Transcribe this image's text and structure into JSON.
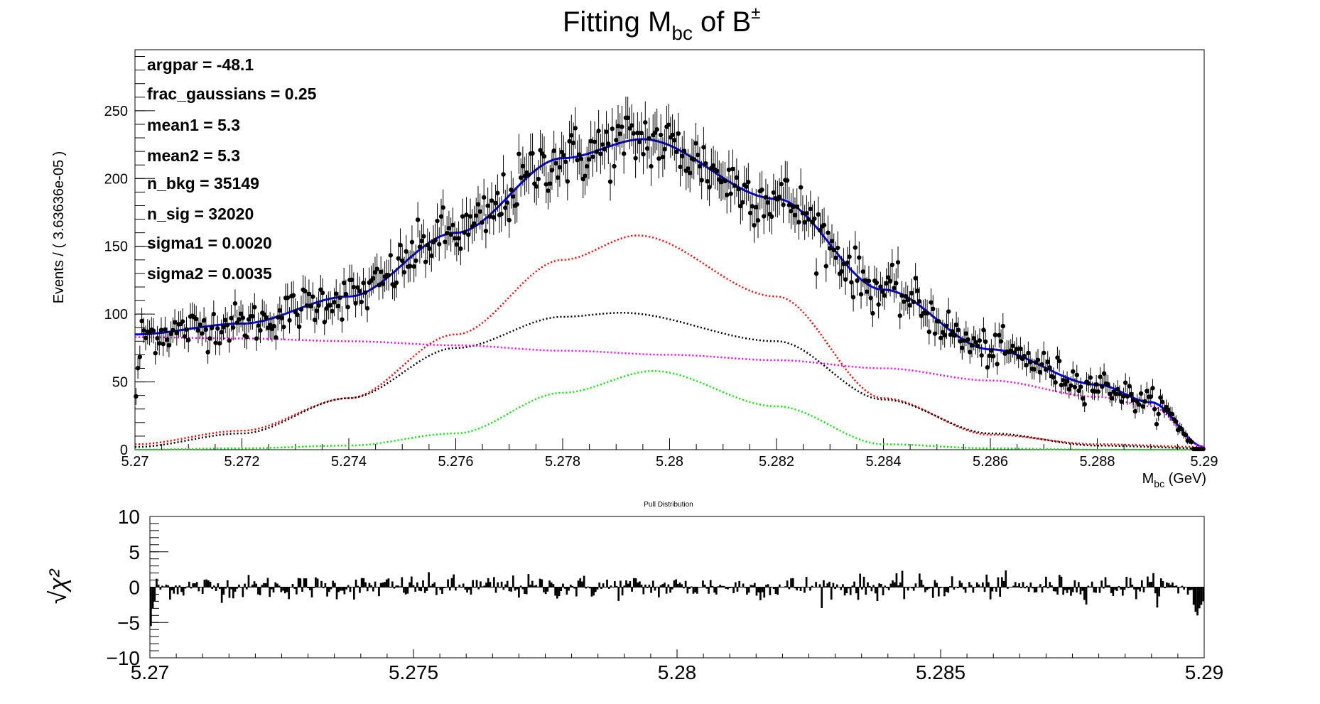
{
  "chart_data": [
    {
      "type": "scatter",
      "title": "Fitting M",
      "title_sub": "bc",
      "title_rest": " of B",
      "title_sup": "±",
      "xlabel": "M",
      "xlabel_sub": "bc",
      "xlabel_rest": " (GeV)",
      "ylabel": "Events / ( 3.63636e-05 )",
      "xlim": [
        5.27,
        5.29
      ],
      "ylim": [
        0,
        295
      ],
      "x_ticks": [
        "5.27",
        "5.272",
        "5.274",
        "5.276",
        "5.278",
        "5.28",
        "5.282",
        "5.284",
        "5.286",
        "5.288",
        "5.29"
      ],
      "y_ticks": [
        "0",
        "50",
        "100",
        "150",
        "200",
        "250"
      ],
      "x_tick_values": [
        5.27,
        5.272,
        5.274,
        5.276,
        5.278,
        5.28,
        5.282,
        5.284,
        5.286,
        5.288,
        5.29
      ],
      "y_tick_values": [
        0,
        50,
        100,
        150,
        200,
        250
      ],
      "params": [
        "argpar = -48.1",
        "frac_gaussians =  0.25",
        "mean1 =  5.3",
        "mean2 =  5.3",
        "n_bkg =  35149",
        "n_sig =  32020",
        "sigma1 =  0.0020",
        "sigma2 =  0.0035"
      ],
      "data_points": {
        "n_bins": 550,
        "x_start": 5.27,
        "x_end": 5.29,
        "peak_value": 228,
        "peak_x": 5.2795,
        "comment_on_shape": "points follow the total fit curve"
      },
      "curves": [
        {
          "color": "#0000ff",
          "style": "solid",
          "x": [
            5.27,
            5.272,
            5.274,
            5.276,
            5.278,
            5.2795,
            5.282,
            5.284,
            5.286,
            5.288,
            5.289,
            5.29
          ],
          "y": [
            85,
            93,
            113,
            160,
            215,
            229,
            185,
            118,
            74,
            48,
            35,
            2
          ]
        },
        {
          "color": "#ff0000",
          "style": "dotted",
          "x": [
            5.27,
            5.272,
            5.274,
            5.276,
            5.278,
            5.2794,
            5.282,
            5.284,
            5.286,
            5.288,
            5.29
          ],
          "y": [
            4,
            14,
            38,
            85,
            140,
            158,
            113,
            38,
            11,
            4,
            2
          ]
        },
        {
          "color": "#000000",
          "style": "dotted",
          "x": [
            5.27,
            5.272,
            5.274,
            5.276,
            5.278,
            5.2791,
            5.282,
            5.284,
            5.286,
            5.288,
            5.29
          ],
          "y": [
            2,
            12,
            38,
            75,
            98,
            101,
            80,
            37,
            12,
            3,
            1
          ]
        },
        {
          "color": "#00ee00",
          "style": "dotted",
          "x": [
            5.27,
            5.272,
            5.274,
            5.276,
            5.278,
            5.2797,
            5.282,
            5.284,
            5.286,
            5.288,
            5.29
          ],
          "y": [
            0,
            1,
            3,
            12,
            42,
            58,
            32,
            4,
            1,
            0,
            0
          ]
        },
        {
          "color": "#ff00ff",
          "style": "dotted",
          "x": [
            5.27,
            5.272,
            5.274,
            5.276,
            5.278,
            5.28,
            5.282,
            5.284,
            5.286,
            5.288,
            5.289,
            5.29
          ],
          "y": [
            83,
            82,
            80,
            77,
            73,
            70,
            66,
            60,
            51,
            39,
            32,
            2
          ]
        }
      ]
    },
    {
      "type": "bar",
      "title": "Pull Distribution",
      "ylabel": "√χ²",
      "xlim": [
        5.27,
        5.29
      ],
      "ylim": [
        -10,
        10
      ],
      "x_ticks": [
        "5.27",
        "5.275",
        "5.28",
        "5.285",
        "5.29"
      ],
      "y_ticks": [
        "10",
        "5",
        "0",
        "−5",
        "−10"
      ],
      "x_tick_values": [
        5.27,
        5.275,
        5.28,
        5.285,
        5.29
      ],
      "y_tick_values": [
        10,
        5,
        0,
        -5,
        -10
      ],
      "bars": {
        "n_bins": 550,
        "typical_range": [
          -2.5,
          2.5
        ],
        "edge_low": [
          -6,
          -3,
          -2
        ],
        "edge_high": [
          -3,
          -4,
          -4
        ]
      }
    }
  ]
}
